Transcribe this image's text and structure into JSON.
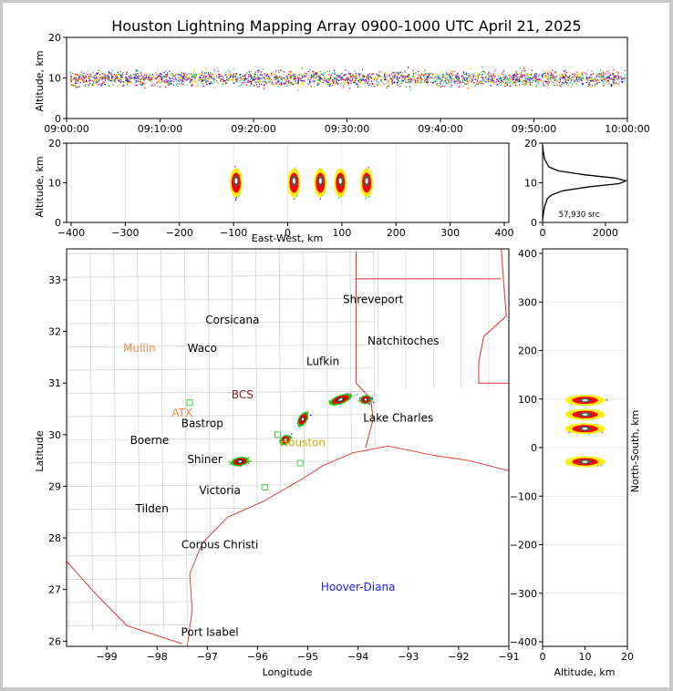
{
  "title": "Houston Lightning Mapping Array 0900-1000 UTC April 21, 2025",
  "colors": {
    "state_border": "#e03030",
    "county_border": "#c8c8c8",
    "frame": "#000000",
    "grid": "#dddddd",
    "station": "#44cc44"
  },
  "chart_data": [
    {
      "id": "time-altitude",
      "type": "scatter",
      "ylabel": "Altitude, km",
      "ylim": [
        0,
        20
      ],
      "yticks": [
        "0",
        "10",
        "20"
      ],
      "xticks": [
        "09:00:00",
        "09:10:00",
        "09:20:00",
        "09:30:00",
        "09:40:00",
        "09:50:00",
        "10:00:00"
      ],
      "xlim": [
        "09:00:00",
        "10:00:00"
      ],
      "source_band_km": [
        6,
        14
      ],
      "source_core_km": 10
    },
    {
      "id": "east-west-altitude",
      "type": "scatter",
      "xlabel": "East-West, km",
      "ylabel": "Altitude, km",
      "xlim": [
        -420,
        420
      ],
      "ylim": [
        0,
        20
      ],
      "xticks": [
        "−400",
        "−300",
        "−200",
        "−100",
        "0",
        "100",
        "200",
        "300",
        "400"
      ],
      "yticks": [
        "0",
        "10",
        "20"
      ],
      "cells_ew_km": [
        -98,
        12,
        62,
        100,
        150
      ]
    },
    {
      "id": "altitude-histogram",
      "type": "line",
      "xticks": [
        "0",
        "2000"
      ],
      "yticks": [
        "0",
        "10",
        "20"
      ],
      "ylim": [
        0,
        20
      ],
      "xlim": [
        0,
        2700
      ],
      "count_label": "57,930 src",
      "profile": [
        {
          "alt": 0.5,
          "count": 0
        },
        {
          "alt": 2,
          "count": 20
        },
        {
          "alt": 4,
          "count": 60
        },
        {
          "alt": 6,
          "count": 150
        },
        {
          "alt": 7,
          "count": 300
        },
        {
          "alt": 8,
          "count": 650
        },
        {
          "alt": 9,
          "count": 1500
        },
        {
          "alt": 9.8,
          "count": 2450
        },
        {
          "alt": 10.5,
          "count": 2650
        },
        {
          "alt": 11.2,
          "count": 2300
        },
        {
          "alt": 12,
          "count": 1350
        },
        {
          "alt": 13,
          "count": 500
        },
        {
          "alt": 14,
          "count": 200
        },
        {
          "alt": 16,
          "count": 60
        },
        {
          "alt": 18,
          "count": 20
        },
        {
          "alt": 19.5,
          "count": 0
        }
      ]
    },
    {
      "id": "plan-view-map",
      "type": "scatter",
      "xlabel": "Longitude",
      "ylabel": "Latitude",
      "xlim": [
        -99.8,
        -91
      ],
      "ylim": [
        25.9,
        33.6
      ],
      "xticks": [
        "−99",
        "−98",
        "−97",
        "−96",
        "−95",
        "−94",
        "−93",
        "−92",
        "−91"
      ],
      "yticks": [
        "26",
        "27",
        "28",
        "29",
        "30",
        "31",
        "32",
        "33"
      ],
      "cities": [
        {
          "name": "Shreveport",
          "lon": -93.7,
          "lat": 32.55,
          "color": "#000000"
        },
        {
          "name": "Corsicana",
          "lon": -96.5,
          "lat": 32.15,
          "color": "#000000"
        },
        {
          "name": "Natchitoches",
          "lon": -93.1,
          "lat": 31.75,
          "color": "#000000"
        },
        {
          "name": "Mullin",
          "lon": -98.35,
          "lat": 31.6,
          "color": "#f08a4b"
        },
        {
          "name": "Waco",
          "lon": -97.1,
          "lat": 31.6,
          "color": "#000000"
        },
        {
          "name": "Lufkin",
          "lon": -94.7,
          "lat": 31.35,
          "color": "#000000"
        },
        {
          "name": "BCS",
          "lon": -96.3,
          "lat": 30.7,
          "color": "#8b1a1a"
        },
        {
          "name": "ATX",
          "lon": -97.5,
          "lat": 30.35,
          "color": "#f08a4b"
        },
        {
          "name": "Bastrop",
          "lon": -97.1,
          "lat": 30.15,
          "color": "#000000"
        },
        {
          "name": "Lake Charles",
          "lon": -93.2,
          "lat": 30.25,
          "color": "#000000"
        },
        {
          "name": "Boerne",
          "lon": -98.15,
          "lat": 29.82,
          "color": "#000000"
        },
        {
          "name": "Houston",
          "lon": -95.1,
          "lat": 29.78,
          "color": "#ccaa00"
        },
        {
          "name": "Shiner",
          "lon": -97.05,
          "lat": 29.45,
          "color": "#000000"
        },
        {
          "name": "Victoria",
          "lon": -96.75,
          "lat": 28.85,
          "color": "#000000"
        },
        {
          "name": "Tilden",
          "lon": -98.1,
          "lat": 28.5,
          "color": "#000000"
        },
        {
          "name": "Corpus Christi",
          "lon": -96.75,
          "lat": 27.8,
          "color": "#000000"
        },
        {
          "name": "Hoover-Diana",
          "lon": -94.0,
          "lat": 26.98,
          "color": "#1a1aff"
        },
        {
          "name": "Port Isabel",
          "lon": -96.95,
          "lat": 26.1,
          "color": "#000000"
        }
      ],
      "storm_cells": [
        {
          "lon": -96.35,
          "lat": 29.48,
          "len": 18,
          "ang": -10
        },
        {
          "lon": -95.45,
          "lat": 29.9,
          "len": 12,
          "ang": -35
        },
        {
          "lon": -95.1,
          "lat": 30.3,
          "len": 16,
          "ang": -60
        },
        {
          "lon": -94.35,
          "lat": 30.68,
          "len": 24,
          "ang": -20
        },
        {
          "lon": -93.85,
          "lat": 30.68,
          "len": 12,
          "ang": -10
        }
      ]
    },
    {
      "id": "north-south-altitude",
      "type": "scatter",
      "xlabel": "Altitude, km",
      "ylabel": "North-South, km",
      "xlim": [
        0,
        20
      ],
      "ylim": [
        -420,
        420
      ],
      "xticks": [
        "0",
        "10",
        "20"
      ],
      "yticks": [
        "−400",
        "−300",
        "−200",
        "−100",
        "0",
        "100",
        "200",
        "300",
        "400"
      ],
      "cells_ns_km": [
        100,
        70,
        40,
        -30
      ]
    }
  ]
}
